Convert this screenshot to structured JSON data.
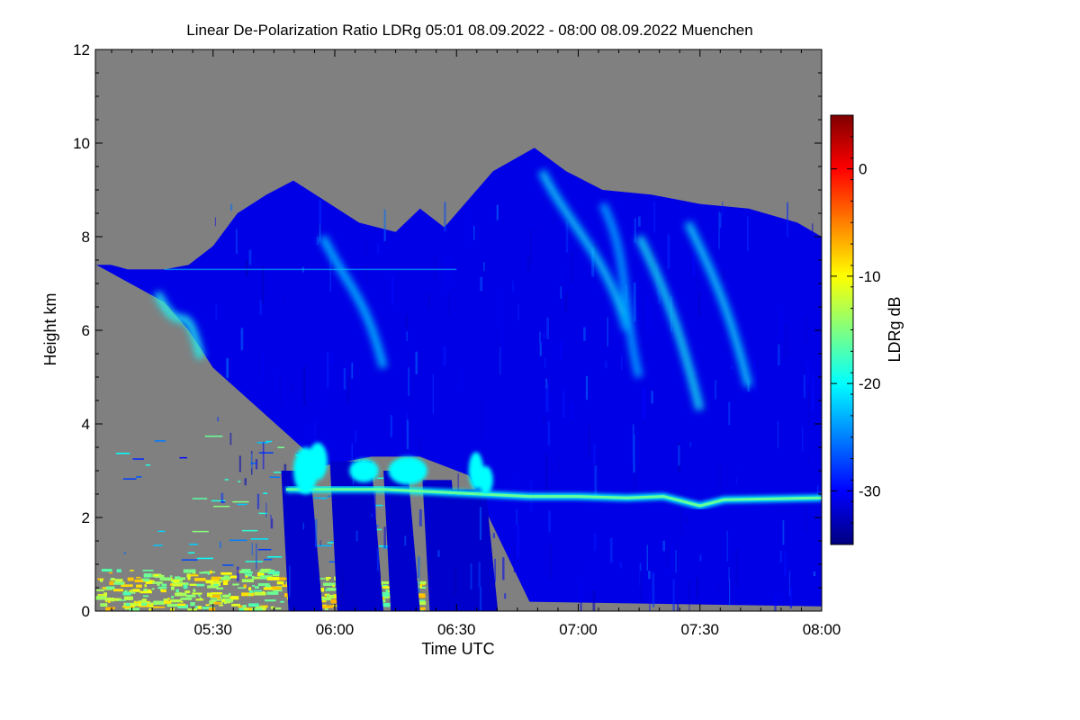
{
  "chart_data": {
    "type": "heatmap",
    "title": "Linear De-Polarization Ratio LDRg   05:01 08.09.2022 - 08:00 08.09.2022 Muenchen",
    "xlabel": "Time UTC",
    "ylabel": "Height km",
    "x_ticks": [
      "05:30",
      "06:00",
      "06:30",
      "07:00",
      "07:30",
      "08:00"
    ],
    "x_tick_values_hours": [
      5.5,
      6.0,
      6.5,
      7.0,
      7.5,
      8.0
    ],
    "xlim_hours": [
      5.0167,
      8.0
    ],
    "y_ticks": [
      0,
      2,
      4,
      6,
      8,
      10,
      12
    ],
    "ylim": [
      0,
      12
    ],
    "colorbar": {
      "label": "LDRg dB",
      "ticks": [
        0,
        -10,
        -20,
        -30
      ],
      "range": [
        -35,
        5
      ],
      "colormap": "jet"
    },
    "no_data_color": "#808080",
    "cloud_top_km": [
      [
        5.02,
        7.4
      ],
      [
        5.08,
        7.4
      ],
      [
        5.15,
        7.3
      ],
      [
        5.3,
        7.3
      ],
      [
        5.4,
        7.4
      ],
      [
        5.5,
        7.8
      ],
      [
        5.6,
        8.5
      ],
      [
        5.72,
        8.9
      ],
      [
        5.83,
        9.2
      ],
      [
        5.95,
        8.8
      ],
      [
        6.1,
        8.3
      ],
      [
        6.25,
        8.1
      ],
      [
        6.35,
        8.6
      ],
      [
        6.45,
        8.2
      ],
      [
        6.55,
        8.8
      ],
      [
        6.65,
        9.4
      ],
      [
        6.82,
        9.9
      ],
      [
        6.95,
        9.4
      ],
      [
        7.1,
        9.0
      ],
      [
        7.3,
        8.9
      ],
      [
        7.5,
        8.7
      ],
      [
        7.7,
        8.6
      ],
      [
        7.9,
        8.3
      ],
      [
        8.0,
        8.0
      ]
    ],
    "cloud_base_km": [
      [
        5.3,
        6.6
      ],
      [
        5.4,
        6.0
      ],
      [
        5.5,
        5.2
      ],
      [
        5.65,
        4.5
      ],
      [
        5.8,
        3.8
      ],
      [
        5.95,
        3.1
      ],
      [
        6.15,
        3.3
      ],
      [
        6.35,
        3.3
      ],
      [
        6.55,
        2.9
      ],
      [
        6.8,
        0.2
      ],
      [
        8.0,
        0.1
      ]
    ],
    "melting_layer_km": [
      [
        5.8,
        2.6
      ],
      [
        6.0,
        2.6
      ],
      [
        6.2,
        2.6
      ],
      [
        6.4,
        2.55
      ],
      [
        6.6,
        2.5
      ],
      [
        6.8,
        2.45
      ],
      [
        7.0,
        2.45
      ],
      [
        7.2,
        2.42
      ],
      [
        7.35,
        2.45
      ],
      [
        7.5,
        2.25
      ],
      [
        7.6,
        2.38
      ],
      [
        7.8,
        2.4
      ],
      [
        8.0,
        2.42
      ]
    ],
    "ice_streaks": [
      {
        "x0": 5.27,
        "x1": 5.45,
        "y0": 6.8,
        "y1": 5.4,
        "ldr_db": -21
      },
      {
        "x0": 5.95,
        "x1": 6.2,
        "y0": 8.0,
        "y1": 5.2,
        "ldr_db": -24
      },
      {
        "x0": 6.85,
        "x1": 7.2,
        "y0": 9.4,
        "y1": 6.0,
        "ldr_db": -23
      },
      {
        "x0": 7.25,
        "x1": 7.5,
        "y0": 8.0,
        "y1": 4.3,
        "ldr_db": -22
      },
      {
        "x0": 7.45,
        "x1": 7.7,
        "y0": 8.3,
        "y1": 4.8,
        "ldr_db": -23
      },
      {
        "x0": 7.1,
        "x1": 7.25,
        "y0": 8.7,
        "y1": 5.0,
        "ldr_db": -25
      }
    ],
    "low_aerosol_ldr_db": -12,
    "cloud_ldr_db": -31
  }
}
